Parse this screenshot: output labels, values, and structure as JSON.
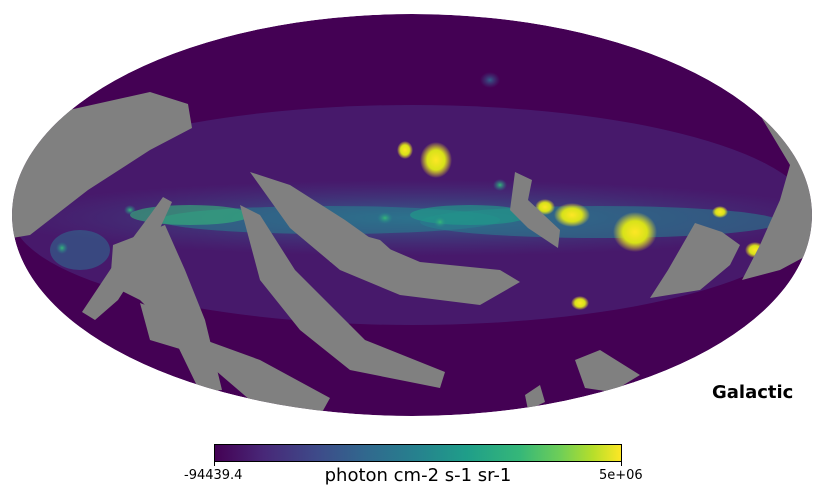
{
  "map": {
    "projection": "mollweide",
    "colormap": "viridis",
    "mask_color": "#808080",
    "background_color": "#440154"
  },
  "coord_label": "Galactic",
  "colorbar": {
    "min_label": "-94439.4",
    "max_label": "5e+06",
    "unit_label": "photon cm-2 s-1 sr-1"
  }
}
